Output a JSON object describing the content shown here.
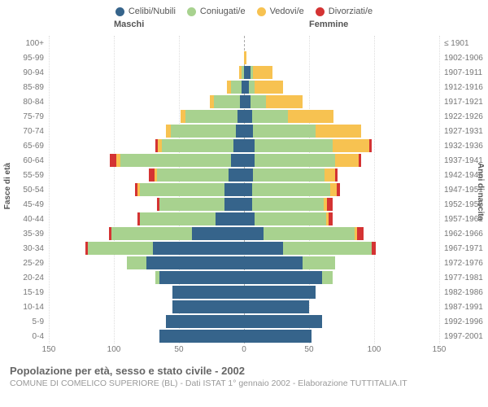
{
  "legend": [
    {
      "label": "Celibi/Nubili",
      "color": "#36648b"
    },
    {
      "label": "Coniugati/e",
      "color": "#a8d28f"
    },
    {
      "label": "Vedovi/e",
      "color": "#f7c251"
    },
    {
      "label": "Divorziati/e",
      "color": "#d43333"
    }
  ],
  "header_male": "Maschi",
  "header_female": "Femmine",
  "y_axis_left": "Fasce di età",
  "y_axis_right": "Anni di nascita",
  "x_max_per_side": 150,
  "x_ticks": [
    150,
    100,
    50,
    0,
    50,
    100,
    150
  ],
  "footer_title": "Popolazione per età, sesso e stato civile - 2002",
  "footer_sub": "COMUNE DI COMELICO SUPERIORE (BL) - Dati ISTAT 1° gennaio 2002 - Elaborazione TUTTITALIA.IT",
  "categories": [
    "celibi",
    "coniugati",
    "vedovi",
    "divorziati"
  ],
  "colors": {
    "celibi": "#36648b",
    "coniugati": "#a8d28f",
    "vedovi": "#f7c251",
    "divorziati": "#d43333"
  },
  "bar_gap": 2,
  "label_fontsize": 10,
  "rows": [
    {
      "age": "100+",
      "birth": "≤ 1901",
      "m": {
        "celibi": 0,
        "coniugati": 0,
        "vedovi": 0,
        "divorziati": 0
      },
      "f": {
        "celibi": 0,
        "coniugati": 0,
        "vedovi": 0,
        "divorziati": 0
      }
    },
    {
      "age": "95-99",
      "birth": "1902-1906",
      "m": {
        "celibi": 0,
        "coniugati": 0,
        "vedovi": 0,
        "divorziati": 0
      },
      "f": {
        "celibi": 0,
        "coniugati": 0,
        "vedovi": 2,
        "divorziati": 0
      }
    },
    {
      "age": "90-94",
      "birth": "1907-1911",
      "m": {
        "celibi": 0,
        "coniugati": 2,
        "vedovi": 2,
        "divorziati": 0
      },
      "f": {
        "celibi": 5,
        "coniugati": 2,
        "vedovi": 15,
        "divorziati": 0
      }
    },
    {
      "age": "85-89",
      "birth": "1912-1916",
      "m": {
        "celibi": 2,
        "coniugati": 8,
        "vedovi": 3,
        "divorziati": 0
      },
      "f": {
        "celibi": 4,
        "coniugati": 4,
        "vedovi": 22,
        "divorziati": 0
      }
    },
    {
      "age": "80-84",
      "birth": "1917-1921",
      "m": {
        "celibi": 3,
        "coniugati": 20,
        "vedovi": 3,
        "divorziati": 0
      },
      "f": {
        "celibi": 5,
        "coniugati": 12,
        "vedovi": 28,
        "divorziati": 0
      }
    },
    {
      "age": "75-79",
      "birth": "1922-1926",
      "m": {
        "celibi": 5,
        "coniugati": 40,
        "vedovi": 4,
        "divorziati": 0
      },
      "f": {
        "celibi": 6,
        "coniugati": 28,
        "vedovi": 35,
        "divorziati": 0
      }
    },
    {
      "age": "70-74",
      "birth": "1927-1931",
      "m": {
        "celibi": 6,
        "coniugati": 50,
        "vedovi": 4,
        "divorziati": 0
      },
      "f": {
        "celibi": 7,
        "coniugati": 48,
        "vedovi": 35,
        "divorziati": 0
      }
    },
    {
      "age": "65-69",
      "birth": "1932-1936",
      "m": {
        "celibi": 8,
        "coniugati": 55,
        "vedovi": 3,
        "divorziati": 2
      },
      "f": {
        "celibi": 8,
        "coniugati": 60,
        "vedovi": 28,
        "divorziati": 2
      }
    },
    {
      "age": "60-64",
      "birth": "1937-1941",
      "m": {
        "celibi": 10,
        "coniugati": 85,
        "vedovi": 3,
        "divorziati": 5
      },
      "f": {
        "celibi": 8,
        "coniugati": 62,
        "vedovi": 18,
        "divorziati": 2
      }
    },
    {
      "age": "55-59",
      "birth": "1942-1946",
      "m": {
        "celibi": 12,
        "coniugati": 55,
        "vedovi": 2,
        "divorziati": 4
      },
      "f": {
        "celibi": 7,
        "coniugati": 55,
        "vedovi": 8,
        "divorziati": 2
      }
    },
    {
      "age": "50-54",
      "birth": "1947-1951",
      "m": {
        "celibi": 15,
        "coniugati": 65,
        "vedovi": 2,
        "divorziati": 2
      },
      "f": {
        "celibi": 6,
        "coniugati": 60,
        "vedovi": 5,
        "divorziati": 3
      }
    },
    {
      "age": "45-49",
      "birth": "1952-1956",
      "m": {
        "celibi": 15,
        "coniugati": 50,
        "vedovi": 0,
        "divorziati": 2
      },
      "f": {
        "celibi": 6,
        "coniugati": 55,
        "vedovi": 3,
        "divorziati": 4
      }
    },
    {
      "age": "40-44",
      "birth": "1957-1961",
      "m": {
        "celibi": 22,
        "coniugati": 58,
        "vedovi": 0,
        "divorziati": 2
      },
      "f": {
        "celibi": 8,
        "coniugati": 55,
        "vedovi": 2,
        "divorziati": 3
      }
    },
    {
      "age": "35-39",
      "birth": "1962-1966",
      "m": {
        "celibi": 40,
        "coniugati": 62,
        "vedovi": 0,
        "divorziati": 2
      },
      "f": {
        "celibi": 15,
        "coniugati": 70,
        "vedovi": 2,
        "divorziati": 5
      }
    },
    {
      "age": "30-34",
      "birth": "1967-1971",
      "m": {
        "celibi": 70,
        "coniugati": 50,
        "vedovi": 0,
        "divorziati": 2
      },
      "f": {
        "celibi": 30,
        "coniugati": 68,
        "vedovi": 0,
        "divorziati": 3
      }
    },
    {
      "age": "25-29",
      "birth": "1972-1976",
      "m": {
        "celibi": 75,
        "coniugati": 15,
        "vedovi": 0,
        "divorziati": 0
      },
      "f": {
        "celibi": 45,
        "coniugati": 25,
        "vedovi": 0,
        "divorziati": 0
      }
    },
    {
      "age": "20-24",
      "birth": "1977-1981",
      "m": {
        "celibi": 65,
        "coniugati": 3,
        "vedovi": 0,
        "divorziati": 0
      },
      "f": {
        "celibi": 60,
        "coniugati": 8,
        "vedovi": 0,
        "divorziati": 0
      }
    },
    {
      "age": "15-19",
      "birth": "1982-1986",
      "m": {
        "celibi": 55,
        "coniugati": 0,
        "vedovi": 0,
        "divorziati": 0
      },
      "f": {
        "celibi": 55,
        "coniugati": 0,
        "vedovi": 0,
        "divorziati": 0
      }
    },
    {
      "age": "10-14",
      "birth": "1987-1991",
      "m": {
        "celibi": 55,
        "coniugati": 0,
        "vedovi": 0,
        "divorziati": 0
      },
      "f": {
        "celibi": 50,
        "coniugati": 0,
        "vedovi": 0,
        "divorziati": 0
      }
    },
    {
      "age": "5-9",
      "birth": "1992-1996",
      "m": {
        "celibi": 60,
        "coniugati": 0,
        "vedovi": 0,
        "divorziati": 0
      },
      "f": {
        "celibi": 60,
        "coniugati": 0,
        "vedovi": 0,
        "divorziati": 0
      }
    },
    {
      "age": "0-4",
      "birth": "1997-2001",
      "m": {
        "celibi": 65,
        "coniugati": 0,
        "vedovi": 0,
        "divorziati": 0
      },
      "f": {
        "celibi": 52,
        "coniugati": 0,
        "vedovi": 0,
        "divorziati": 0
      }
    }
  ]
}
